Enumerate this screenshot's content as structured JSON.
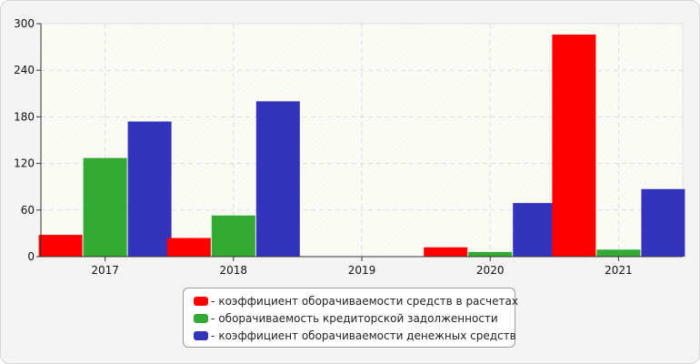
{
  "chart_data": {
    "type": "bar",
    "categories": [
      "2017",
      "2018",
      "2019",
      "2020",
      "2021"
    ],
    "series": [
      {
        "name": "коэффициент оборачиваемости средств в расчетах",
        "color": "#ff0000",
        "values": [
          28,
          24,
          0,
          12,
          286
        ]
      },
      {
        "name": "оборачиваемость кредиторской задолженности",
        "color": "#33aa33",
        "values": [
          127,
          53,
          0,
          6,
          9
        ]
      },
      {
        "name": "коэффициент оборачиваемости денежных средств",
        "color": "#3333bb",
        "values": [
          174,
          200,
          0,
          69,
          87
        ]
      }
    ],
    "yticks": [
      "0",
      "60",
      "120",
      "180",
      "240",
      "300"
    ],
    "ylim": [
      0,
      300
    ],
    "grid": true,
    "legend_position": "bottom",
    "legend_prefix": "-"
  }
}
